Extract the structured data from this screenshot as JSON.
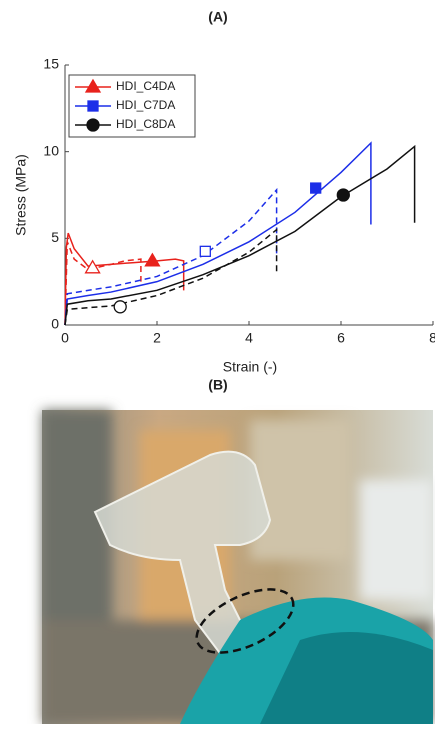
{
  "chart_data": {
    "type": "line",
    "panel_label": "(A)",
    "xlabel": "Strain (-)",
    "ylabel": "Stress (MPa)",
    "xlim": [
      0,
      8
    ],
    "xticks": [
      0,
      2,
      4,
      6,
      8
    ],
    "ylim": [
      0,
      15
    ],
    "yticks": [
      0,
      5,
      10,
      15
    ],
    "legend": "upper left",
    "series": [
      {
        "name": "HDI_C4DA",
        "color": "#e8221c",
        "marker": "triangle",
        "x": [
          0,
          0.03,
          0.07,
          0.2,
          0.5,
          1,
          1.5,
          2,
          2.4,
          2.58,
          2.58
        ],
        "values": [
          0,
          4.5,
          5.3,
          4.4,
          3.4,
          3.5,
          3.6,
          3.7,
          3.8,
          3.7,
          2.0
        ],
        "dashed_x": [
          0,
          0.05,
          0.2,
          0.5,
          1,
          1.3,
          1.65,
          1.65
        ],
        "dashed_values": [
          0,
          4.8,
          3.8,
          3.2,
          3.5,
          3.7,
          3.8,
          2.5
        ],
        "marker_x": 1.9,
        "marker_y": 3.7,
        "open_marker_x": 0.6,
        "open_marker_y": 3.3
      },
      {
        "name": "HDI_C7DA",
        "color": "#1c2ee8",
        "marker": "square",
        "x": [
          0,
          0.05,
          0.5,
          1,
          2,
          3,
          4,
          5,
          6,
          6.65,
          6.65
        ],
        "values": [
          0,
          1.5,
          1.7,
          1.9,
          2.5,
          3.5,
          4.8,
          6.5,
          8.8,
          10.5,
          5.8
        ],
        "dashed_x": [
          0,
          0.05,
          0.5,
          1,
          2,
          3,
          4,
          4.6,
          4.6
        ],
        "dashed_values": [
          0,
          1.8,
          2.0,
          2.2,
          2.8,
          4.0,
          6.0,
          7.8,
          4.0
        ],
        "marker_x": 5.45,
        "marker_y": 7.9,
        "open_marker_x": 3.05,
        "open_marker_y": 4.25
      },
      {
        "name": "HDI_C8DA",
        "color": "#111111",
        "marker": "circle",
        "x": [
          0,
          0.05,
          0.5,
          1,
          2,
          3,
          4,
          5,
          6,
          7,
          7.6,
          7.6
        ],
        "values": [
          0,
          1.2,
          1.4,
          1.5,
          2.0,
          2.9,
          4.0,
          5.4,
          7.4,
          9.0,
          10.3,
          5.9
        ],
        "dashed_x": [
          0,
          0.05,
          0.5,
          1,
          2,
          3,
          4,
          4.6,
          4.6
        ],
        "dashed_values": [
          0,
          0.9,
          1.0,
          1.1,
          1.7,
          2.7,
          4.2,
          5.5,
          3.0
        ],
        "marker_x": 6.05,
        "marker_y": 7.5,
        "open_marker_x": 1.2,
        "open_marker_y": 1.05
      }
    ]
  },
  "photo": {
    "label": "(B)"
  }
}
